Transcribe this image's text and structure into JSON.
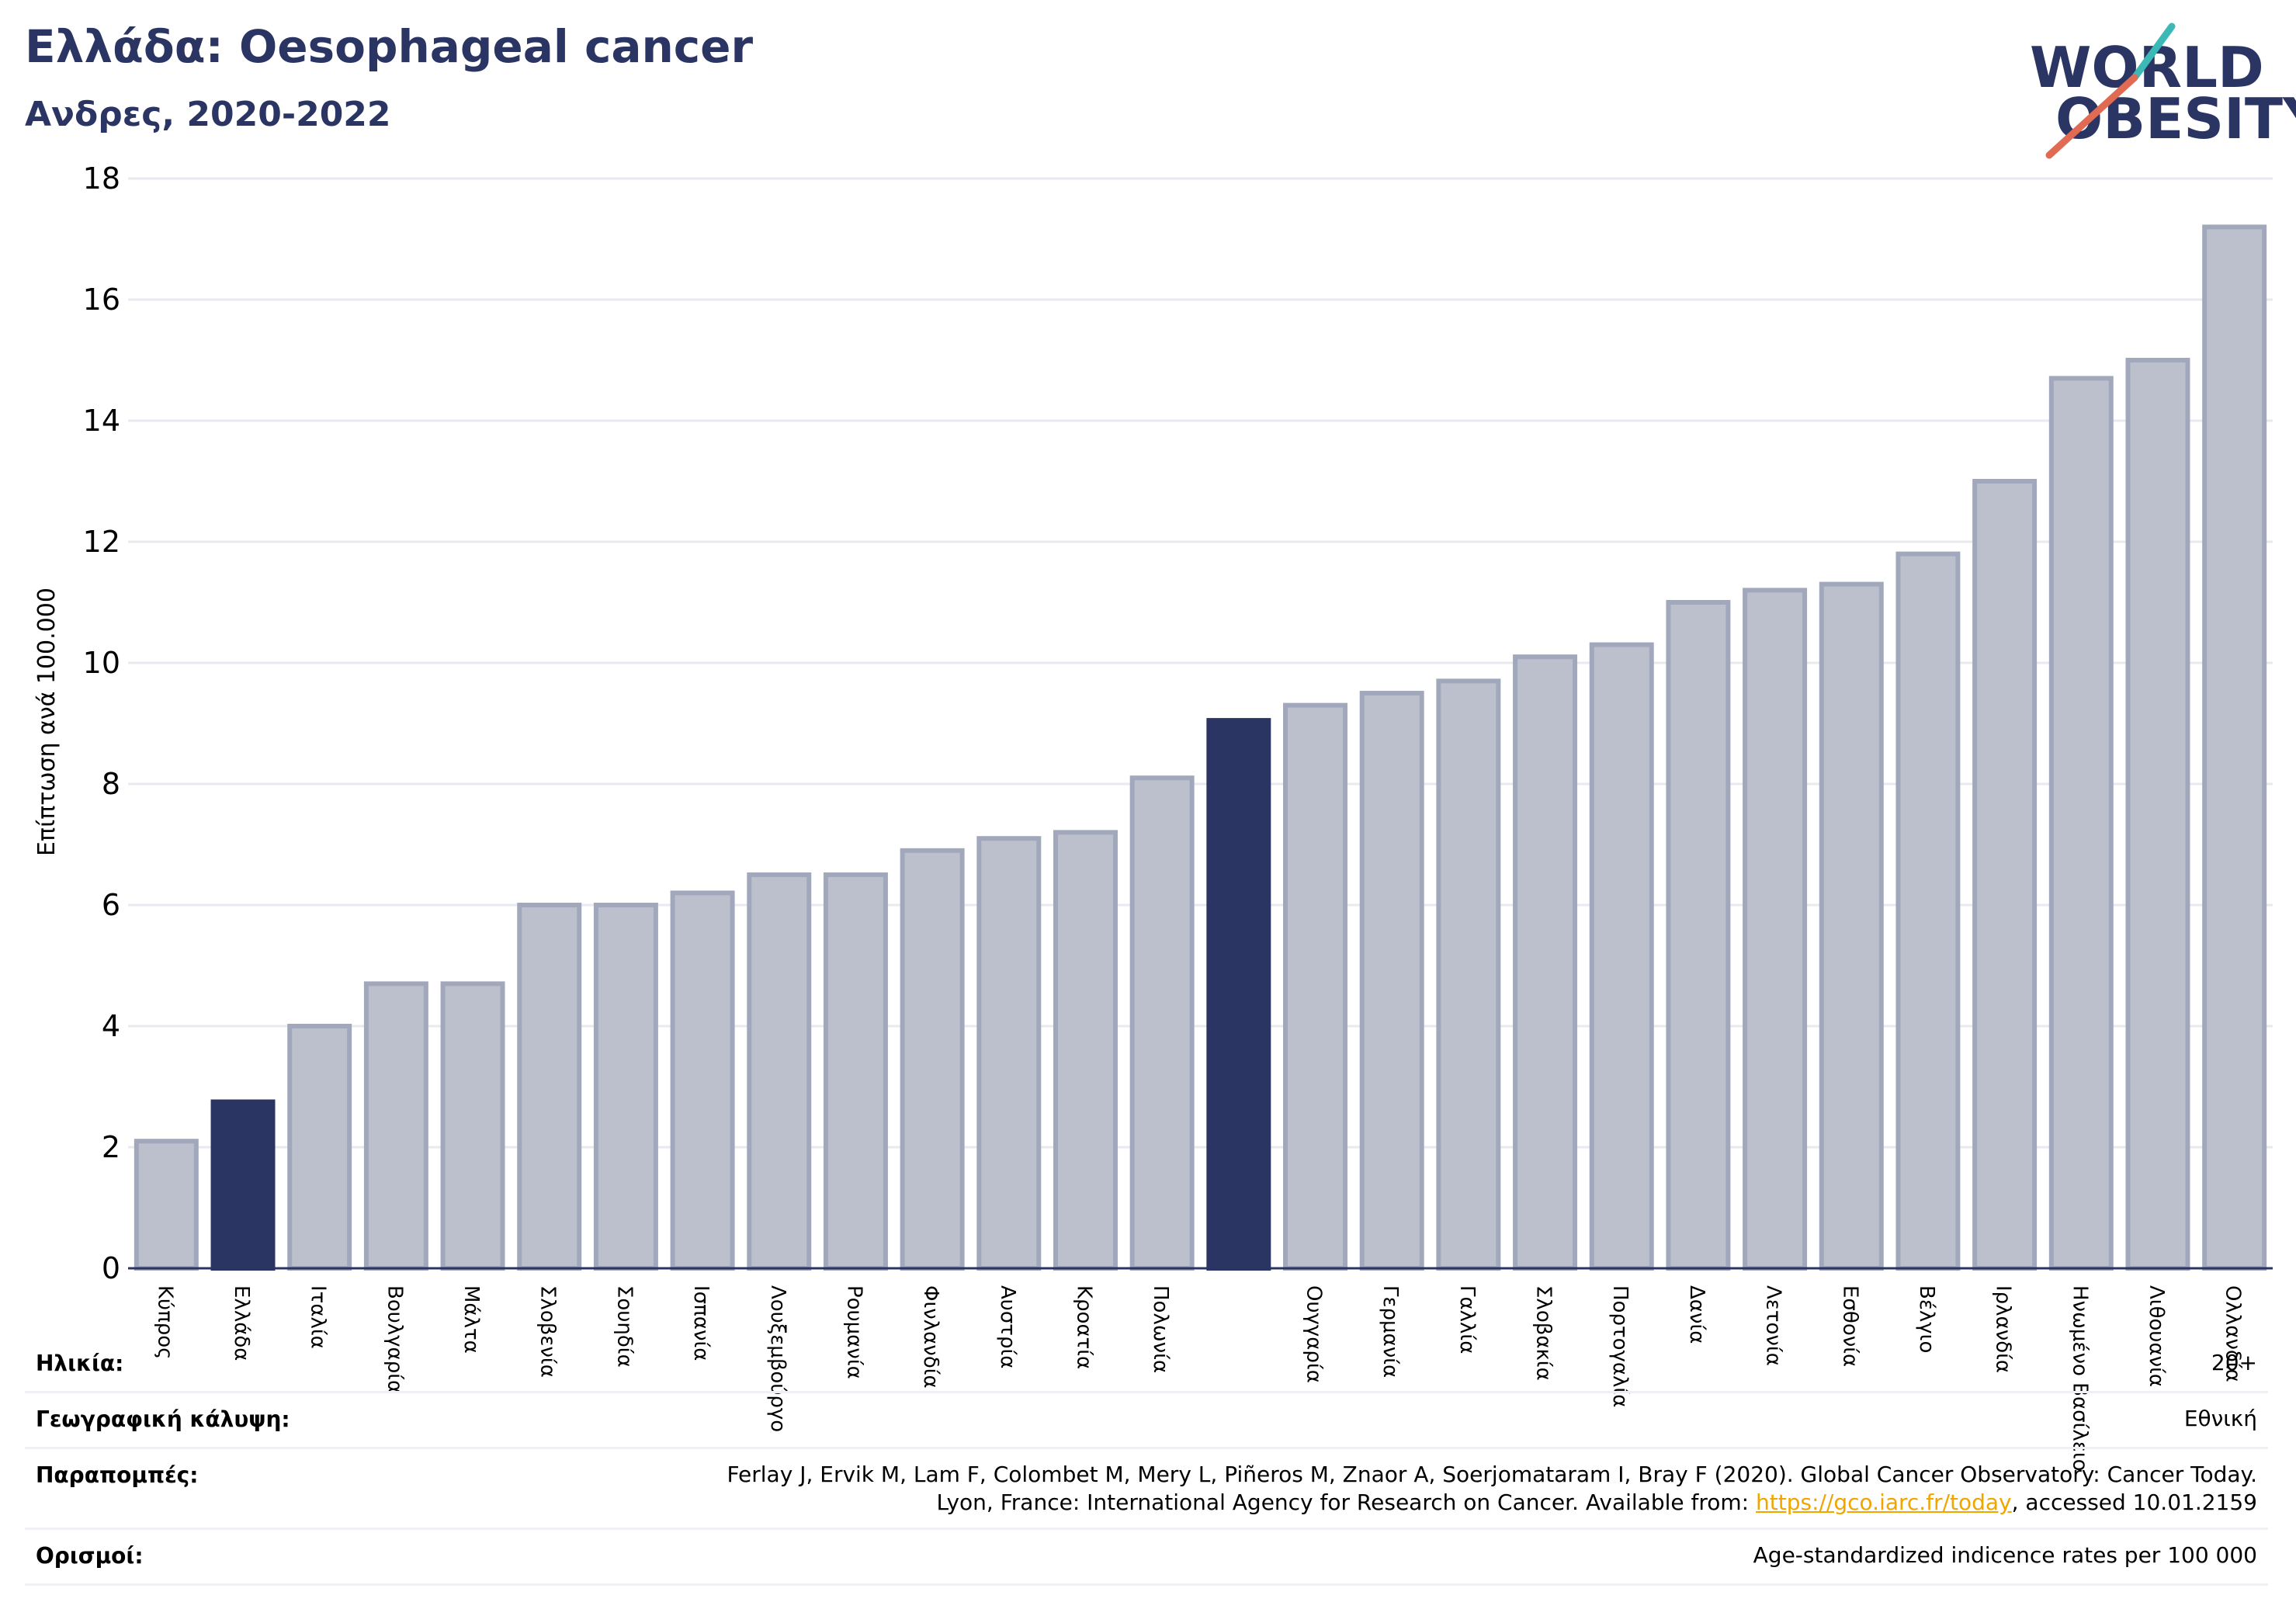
{
  "header": {
    "title": "Ελλάδα: Oesophageal cancer",
    "subtitle": "Ανδρες, 2020-2022"
  },
  "logo": {
    "line1": "WORLD",
    "line2": "OBESITY",
    "colors": {
      "text": "#2b3563",
      "slash_teal": "#3bb9b6",
      "slash_red": "#e06a52"
    }
  },
  "colors": {
    "bar_default": "#bcc0cc",
    "bar_border": "#a2a8bc",
    "bar_highlight": "#2b3563",
    "grid": "#e8eaf0",
    "axis": "#2b3563"
  },
  "chart_data": {
    "type": "bar",
    "ylabel": "Επίπτωση ανά 100.000",
    "ylim": [
      0,
      18
    ],
    "yticks": [
      0,
      2,
      4,
      6,
      8,
      10,
      12,
      14,
      16,
      18
    ],
    "grid": true,
    "categories": [
      "Κύπρος",
      "Ελλάδα",
      "Ιταλία",
      "Βουλγαρία",
      "Μάλτα",
      "Σλοβενία",
      "Σουηδία",
      "Ισπανία",
      "Λουξεμβούργο",
      "Ρουμανία",
      "Φινλανδία",
      "Αυστρία",
      "Κροατία",
      "Πολωνία",
      "",
      "Ουγγαρία",
      "Γερμανία",
      "Γαλλία",
      "Σλοβακία",
      "Πορτογαλία",
      "Δανία",
      "Λετονία",
      "Εσθονία",
      "Βέλγιο",
      "Ιρλανδία",
      "Ηνωμένο Βασίλειο",
      "Λιθουανία",
      "Ολλανδία"
    ],
    "values": [
      2.1,
      2.75,
      4.0,
      4.7,
      4.7,
      6.0,
      6.0,
      6.2,
      6.5,
      6.5,
      6.9,
      7.1,
      7.2,
      8.1,
      9.05,
      9.3,
      9.5,
      9.7,
      10.1,
      10.3,
      11.0,
      11.2,
      11.3,
      11.8,
      13.0,
      14.7,
      15.0,
      17.2
    ],
    "highlighted": [
      false,
      true,
      false,
      false,
      false,
      false,
      false,
      false,
      false,
      false,
      false,
      false,
      false,
      false,
      true,
      false,
      false,
      false,
      false,
      false,
      false,
      false,
      false,
      false,
      false,
      false,
      false,
      false
    ]
  },
  "info": {
    "age_label": "Ηλικία:",
    "age_value": "20+",
    "geo_label": "Γεωγραφική κάλυψη:",
    "geo_value": "Εθνική",
    "ref_label": "Παραπομπές:",
    "ref_line1": "Ferlay J, Ervik M, Lam F, Colombet M, Mery L, Piñeros M, Znaor A, Soerjomataram I, Bray F (2020). Global Cancer Observatory: Cancer Today.",
    "ref_line2_pre": "Lyon, France: International Agency for Research on Cancer. Available from: ",
    "ref_link": "https://gco.iarc.fr/today",
    "ref_line2_post": ", accessed 10.01.2159",
    "def_label": "Ορισμοί:",
    "def_value": "Age-standardized indicence rates per 100 000"
  }
}
